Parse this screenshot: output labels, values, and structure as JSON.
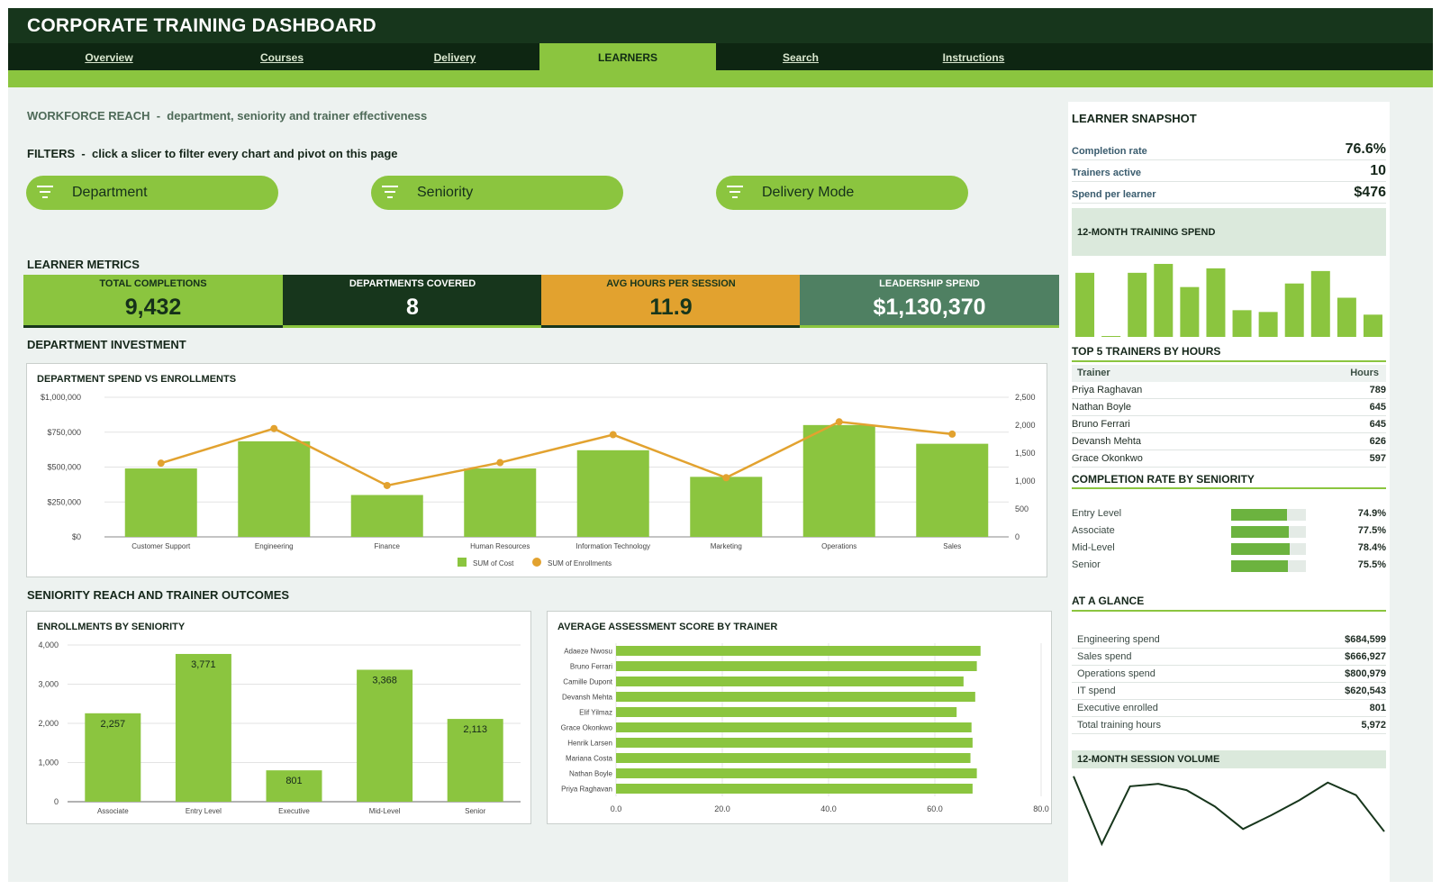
{
  "header": {
    "title": "CORPORATE TRAINING DASHBOARD"
  },
  "tabs": [
    "Overview",
    "Courses",
    "Delivery",
    "LEARNERS",
    "Search",
    "Instructions"
  ],
  "active_tab": "LEARNERS",
  "subtitle": "WORKFORCE REACH  -  department, seniority and trainer effectiveness",
  "filters": {
    "label": "FILTERS  -  click a slicer to filter every chart and pivot on this page",
    "slicers": [
      "Department",
      "Seniority",
      "Delivery Mode"
    ],
    "icon": "filter-icon"
  },
  "sections": {
    "metrics": "LEARNER METRICS",
    "dept": "DEPARTMENT INVESTMENT",
    "seniority": "SENIORITY REACH AND TRAINER OUTCOMES"
  },
  "kpis": [
    {
      "label": "TOTAL COMPLETIONS",
      "value": "9,432",
      "bg": "#8bc53f",
      "fg": "#15301a",
      "line": "#17361c"
    },
    {
      "label": "DEPARTMENTS COVERED",
      "value": "8",
      "bg": "#17361c",
      "fg": "#ffffff",
      "line": "#8bc53f"
    },
    {
      "label": "AVG HOURS PER SESSION",
      "value": "11.9",
      "bg": "#e2a22f",
      "fg": "#17361c",
      "line": "#17361c"
    },
    {
      "label": "LEADERSHIP SPEND",
      "value": "$1,130,370",
      "bg": "#4f8062",
      "fg": "#ffffff",
      "line": "#8bc53f"
    }
  ],
  "chart_data": [
    {
      "type": "bar",
      "title": "DEPARTMENT SPEND VS ENROLLMENTS",
      "categories": [
        "Customer Support",
        "Engineering",
        "Finance",
        "Human Resources",
        "Information Technology",
        "Marketing",
        "Operations",
        "Sales"
      ],
      "series": [
        {
          "name": "SUM of Cost",
          "type": "bar",
          "axis": "left",
          "values": [
            490000,
            684599,
            300000,
            490000,
            620543,
            430000,
            800979,
            666927
          ],
          "color": "#8bc53f"
        },
        {
          "name": "SUM of Enrollments",
          "type": "line",
          "axis": "right",
          "values": [
            1320,
            1940,
            920,
            1330,
            1830,
            1060,
            2060,
            1840
          ],
          "color": "#e2a22f"
        }
      ],
      "ylim_left": [
        0,
        1000000
      ],
      "yticks_left": [
        "$0",
        "$250,000",
        "$500,000",
        "$750,000",
        "$1,000,000"
      ],
      "ylim_right": [
        0,
        2500
      ],
      "yticks_right": [
        "0",
        "500",
        "1,000",
        "1,500",
        "2,000",
        "2,500"
      ],
      "legend": "bottom",
      "grid": true
    },
    {
      "type": "bar",
      "title": "ENROLLMENTS BY SENIORITY",
      "categories": [
        "Associate",
        "Entry Level",
        "Executive",
        "Mid-Level",
        "Senior"
      ],
      "values": [
        2257,
        3771,
        801,
        3368,
        2113
      ],
      "labels": [
        "2,257",
        "3,771",
        "801",
        "3,368",
        "2,113"
      ],
      "ylim": [
        0,
        4000
      ],
      "yticks": [
        "0",
        "1,000",
        "2,000",
        "3,000",
        "4,000"
      ],
      "color": "#8bc53f",
      "grid": true
    },
    {
      "type": "bar",
      "orientation": "horizontal",
      "title": "AVERAGE ASSESSMENT SCORE BY TRAINER",
      "categories": [
        "Adaeze Nwosu",
        "Bruno Ferrari",
        "Camille Dupont",
        "Devansh Mehta",
        "Elif Yilmaz",
        "Grace Okonkwo",
        "Henrik Larsen",
        "Mariana Costa",
        "Nathan Boyle",
        "Priya Raghavan"
      ],
      "values": [
        68.6,
        67.9,
        65.4,
        67.6,
        64.1,
        66.9,
        67.1,
        66.7,
        67.9,
        67.1
      ],
      "xlim": [
        0,
        80
      ],
      "xticks": [
        "0.0",
        "20.0",
        "40.0",
        "60.0",
        "80.0"
      ],
      "color": "#8bc53f",
      "grid": true
    },
    {
      "type": "bar",
      "title": "12-MONTH TRAINING SPEND",
      "values": [
        72,
        1,
        72,
        82,
        56,
        77,
        30,
        28,
        60,
        74,
        44,
        25
      ],
      "ylim": [
        0,
        85
      ],
      "color": "#8bc53f"
    },
    {
      "type": "line",
      "title": "12-MONTH SESSION VOLUME",
      "values": [
        54,
        0,
        46,
        48,
        43,
        30,
        12,
        23,
        35,
        49,
        39,
        10
      ],
      "ylim": [
        0,
        56
      ],
      "color": "#17361c"
    }
  ],
  "snapshot": {
    "title": "LEARNER SNAPSHOT",
    "rows": [
      {
        "label": "Completion rate",
        "value": "76.6%"
      },
      {
        "label": "Trainers active",
        "value": "10"
      },
      {
        "label": "Spend per learner",
        "value": "$476"
      }
    ]
  },
  "trainers": {
    "title": "TOP 5 TRAINERS BY HOURS",
    "col_trainer": "Trainer",
    "col_hours": "Hours",
    "rows": [
      {
        "name": "Priya Raghavan",
        "hours": "789"
      },
      {
        "name": "Nathan Boyle",
        "hours": "645"
      },
      {
        "name": "Bruno Ferrari",
        "hours": "645"
      },
      {
        "name": "Devansh Mehta",
        "hours": "626"
      },
      {
        "name": "Grace Okonkwo",
        "hours": "597"
      }
    ]
  },
  "completion": {
    "title": "COMPLETION RATE BY SENIORITY",
    "rows": [
      {
        "label": "Entry Level",
        "value": "74.9%",
        "fraction": 0.749
      },
      {
        "label": "Associate",
        "value": "77.5%",
        "fraction": 0.775
      },
      {
        "label": "Mid-Level",
        "value": "78.4%",
        "fraction": 0.784
      },
      {
        "label": "Senior",
        "value": "75.5%",
        "fraction": 0.755
      }
    ]
  },
  "glance": {
    "title": "AT A GLANCE",
    "rows": [
      {
        "label": "Engineering spend",
        "value": "$684,599"
      },
      {
        "label": "Sales spend",
        "value": "$666,927"
      },
      {
        "label": "Operations spend",
        "value": "$800,979"
      },
      {
        "label": "IT spend",
        "value": "$620,543"
      },
      {
        "label": "Executive enrolled",
        "value": "801"
      },
      {
        "label": "Total training hours",
        "value": "5,972"
      }
    ]
  }
}
